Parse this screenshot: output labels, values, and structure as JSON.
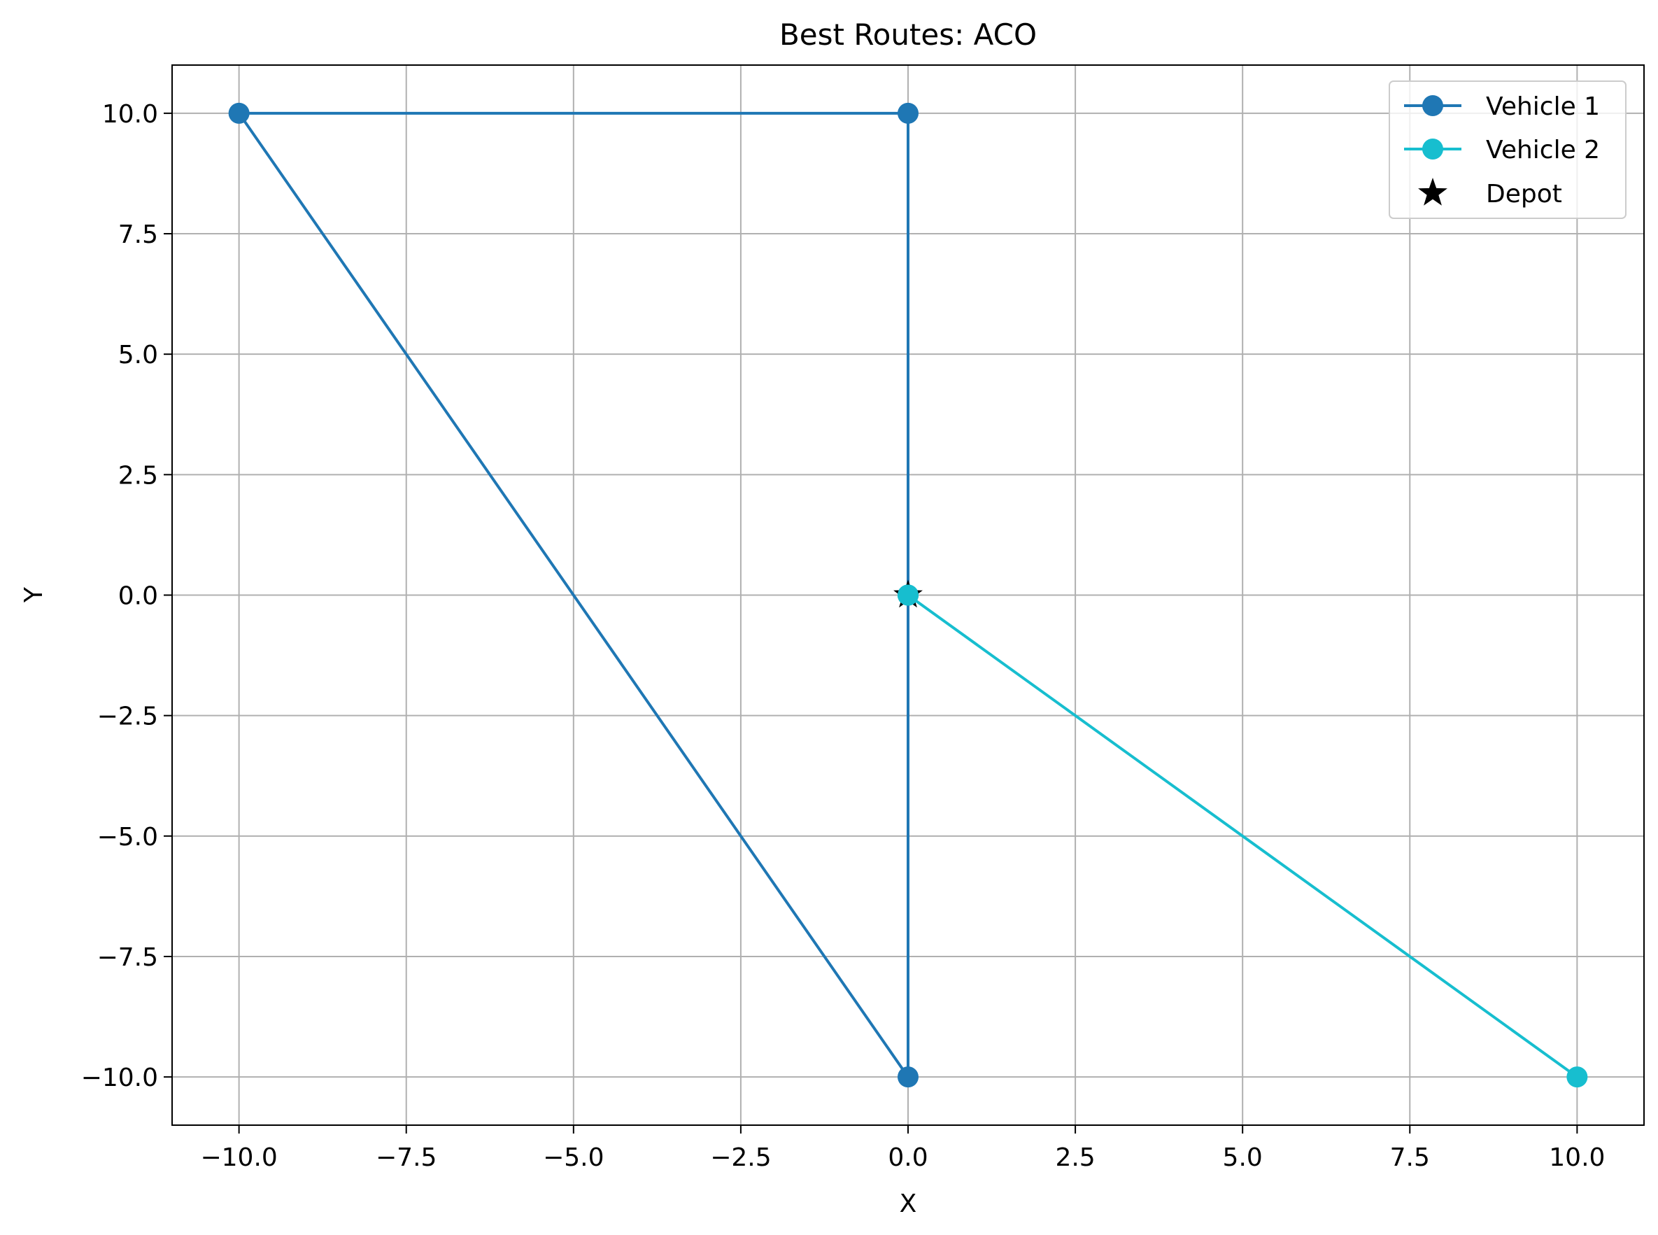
{
  "chart_data": {
    "type": "line",
    "title": "Best Routes: ACO",
    "xlabel": "X",
    "ylabel": "Y",
    "xlim": [
      -11,
      11
    ],
    "ylim": [
      -11,
      11
    ],
    "xticks": [
      -10.0,
      -7.5,
      -5.0,
      -2.5,
      0.0,
      2.5,
      5.0,
      7.5,
      10.0
    ],
    "yticks": [
      -10.0,
      -7.5,
      -5.0,
      -2.5,
      0.0,
      2.5,
      5.0,
      7.5,
      10.0
    ],
    "xtick_labels": [
      "−10.0",
      "−7.5",
      "−5.0",
      "−2.5",
      "0.0",
      "2.5",
      "5.0",
      "7.5",
      "10.0"
    ],
    "ytick_labels": [
      "−10.0",
      "−7.5",
      "−5.0",
      "−2.5",
      "0.0",
      "2.5",
      "5.0",
      "7.5",
      "10.0"
    ],
    "grid": true,
    "legend_position": "top-right",
    "series": [
      {
        "name": "Vehicle 1",
        "color": "#1f77b4",
        "marker": "circle",
        "x": [
          0,
          0,
          -10,
          0,
          0
        ],
        "y": [
          0,
          -10,
          10,
          10,
          0
        ]
      },
      {
        "name": "Vehicle 2",
        "color": "#17becf",
        "marker": "circle",
        "x": [
          0,
          10,
          0
        ],
        "y": [
          0,
          -10,
          0
        ]
      }
    ],
    "depot": {
      "name": "Depot",
      "x": 0,
      "y": 0,
      "marker": "star",
      "color": "#000000"
    }
  }
}
